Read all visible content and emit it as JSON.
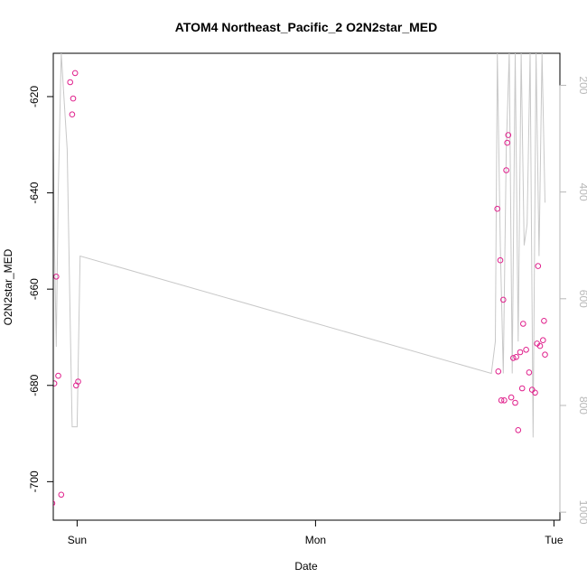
{
  "chart_data": {
    "type": "scatter",
    "title": "ATOM4 Northeast_Pacific_2 O2N2star_MED",
    "xlabel": "Date",
    "ylabel": "O2N2star_MED",
    "x_ticks": [
      "Sun",
      "Mon",
      "Tue"
    ],
    "x_ticks_hours": [
      0,
      24,
      48
    ],
    "xlim_hours": [
      -2.4,
      48.6
    ],
    "ylim": [
      -708,
      -611
    ],
    "y_ticks": [
      -620,
      -640,
      -660,
      -680,
      -700
    ],
    "y2lim": [
      1015,
      140
    ],
    "y2_ticks": [
      200,
      400,
      600,
      800,
      1000
    ],
    "grid": false,
    "colors": {
      "points": "#e0208c",
      "line": "#c8c8c8",
      "axis": "#000000",
      "right_axis": "#b8b8b8"
    },
    "series": [
      {
        "type": "scatter",
        "axis": "left",
        "x": [
          -2.5,
          -2.3,
          -2.1,
          -1.9,
          -1.6,
          -0.7,
          -0.5,
          -0.4,
          -0.2,
          -0.1,
          0.1,
          42.3,
          42.4,
          42.6,
          42.7,
          42.9,
          43.0,
          43.2,
          43.3,
          43.4,
          43.7,
          43.9,
          44.1,
          44.2,
          44.4,
          44.6,
          44.8,
          44.9,
          45.2,
          45.5,
          45.8,
          46.1,
          46.3,
          46.4,
          46.6,
          46.9,
          47.0,
          47.1
        ],
        "y": [
          -704.5,
          -679.6,
          -657.4,
          -678.0,
          -702.7,
          -617.0,
          -623.7,
          -620.4,
          -615.1,
          -680.0,
          -679.2,
          -643.3,
          -677.1,
          -654.0,
          -683.1,
          -662.2,
          -683.1,
          -635.3,
          -629.6,
          -628.0,
          -682.5,
          -674.3,
          -683.6,
          -674.1,
          -689.3,
          -673.1,
          -680.6,
          -667.2,
          -672.6,
          -677.3,
          -680.9,
          -681.5,
          -671.3,
          -655.2,
          -671.8,
          -670.6,
          -666.6,
          -673.6
        ]
      },
      {
        "type": "line",
        "axis": "right",
        "x": [
          -2.5,
          -2.3,
          -2.1,
          -1.9,
          -1.6,
          -1.3,
          -1.0,
          -0.7,
          -0.5,
          -0.3,
          0.0,
          0.3,
          41.7,
          42.1,
          42.3,
          42.6,
          42.9,
          43.2,
          43.5,
          43.8,
          44.1,
          44.4,
          44.7,
          45.0,
          45.3,
          45.6,
          45.9,
          46.2,
          46.5,
          46.8,
          47.1
        ],
        "y": [
          140,
          480,
          690,
          400,
          140,
          230,
          320,
          640,
          840,
          840,
          840,
          520,
          740,
          680,
          140,
          500,
          740,
          320,
          140,
          740,
          140,
          680,
          140,
          500,
          460,
          140,
          860,
          140,
          520,
          140,
          420
        ]
      }
    ]
  }
}
